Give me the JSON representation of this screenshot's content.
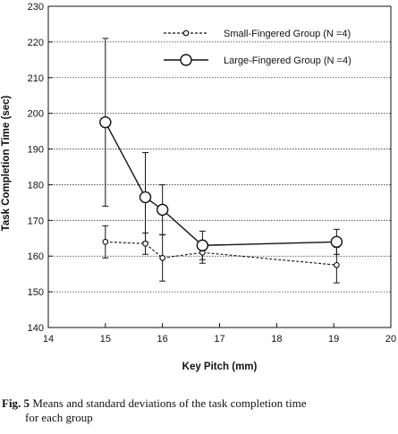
{
  "chart_data": {
    "type": "line",
    "xlabel": "Key Pitch (mm)",
    "ylabel": "Task Completion Time (sec)",
    "xlim": [
      14,
      20
    ],
    "ylim": [
      140,
      230
    ],
    "xticks": [
      14,
      15,
      16,
      17,
      18,
      19,
      20
    ],
    "yticks": [
      140,
      150,
      160,
      170,
      180,
      190,
      200,
      210,
      220,
      230
    ],
    "grid": "horizontal dotted",
    "legend_position": "top-right",
    "series": [
      {
        "name": "Small-Fingered Group (N =4)",
        "style": "dashed-small-marker",
        "x": [
          15,
          15.7,
          16,
          16.7,
          19.05
        ],
        "y": [
          164,
          163.5,
          159.5,
          161,
          157.5
        ],
        "error": [
          4.5,
          3,
          6.5,
          3,
          5
        ]
      },
      {
        "name": "Large-Fingered Group (N =4)",
        "style": "solid-large-marker",
        "x": [
          15,
          15.7,
          16,
          16.7,
          19.05
        ],
        "y": [
          197.5,
          176.5,
          173,
          163,
          164
        ],
        "error": [
          23.5,
          12.5,
          7,
          4,
          3.5
        ]
      }
    ]
  },
  "caption": {
    "label": "Fig. 5",
    "line1": " Means and standard deviations of the task completion time",
    "line2": "for each group"
  }
}
